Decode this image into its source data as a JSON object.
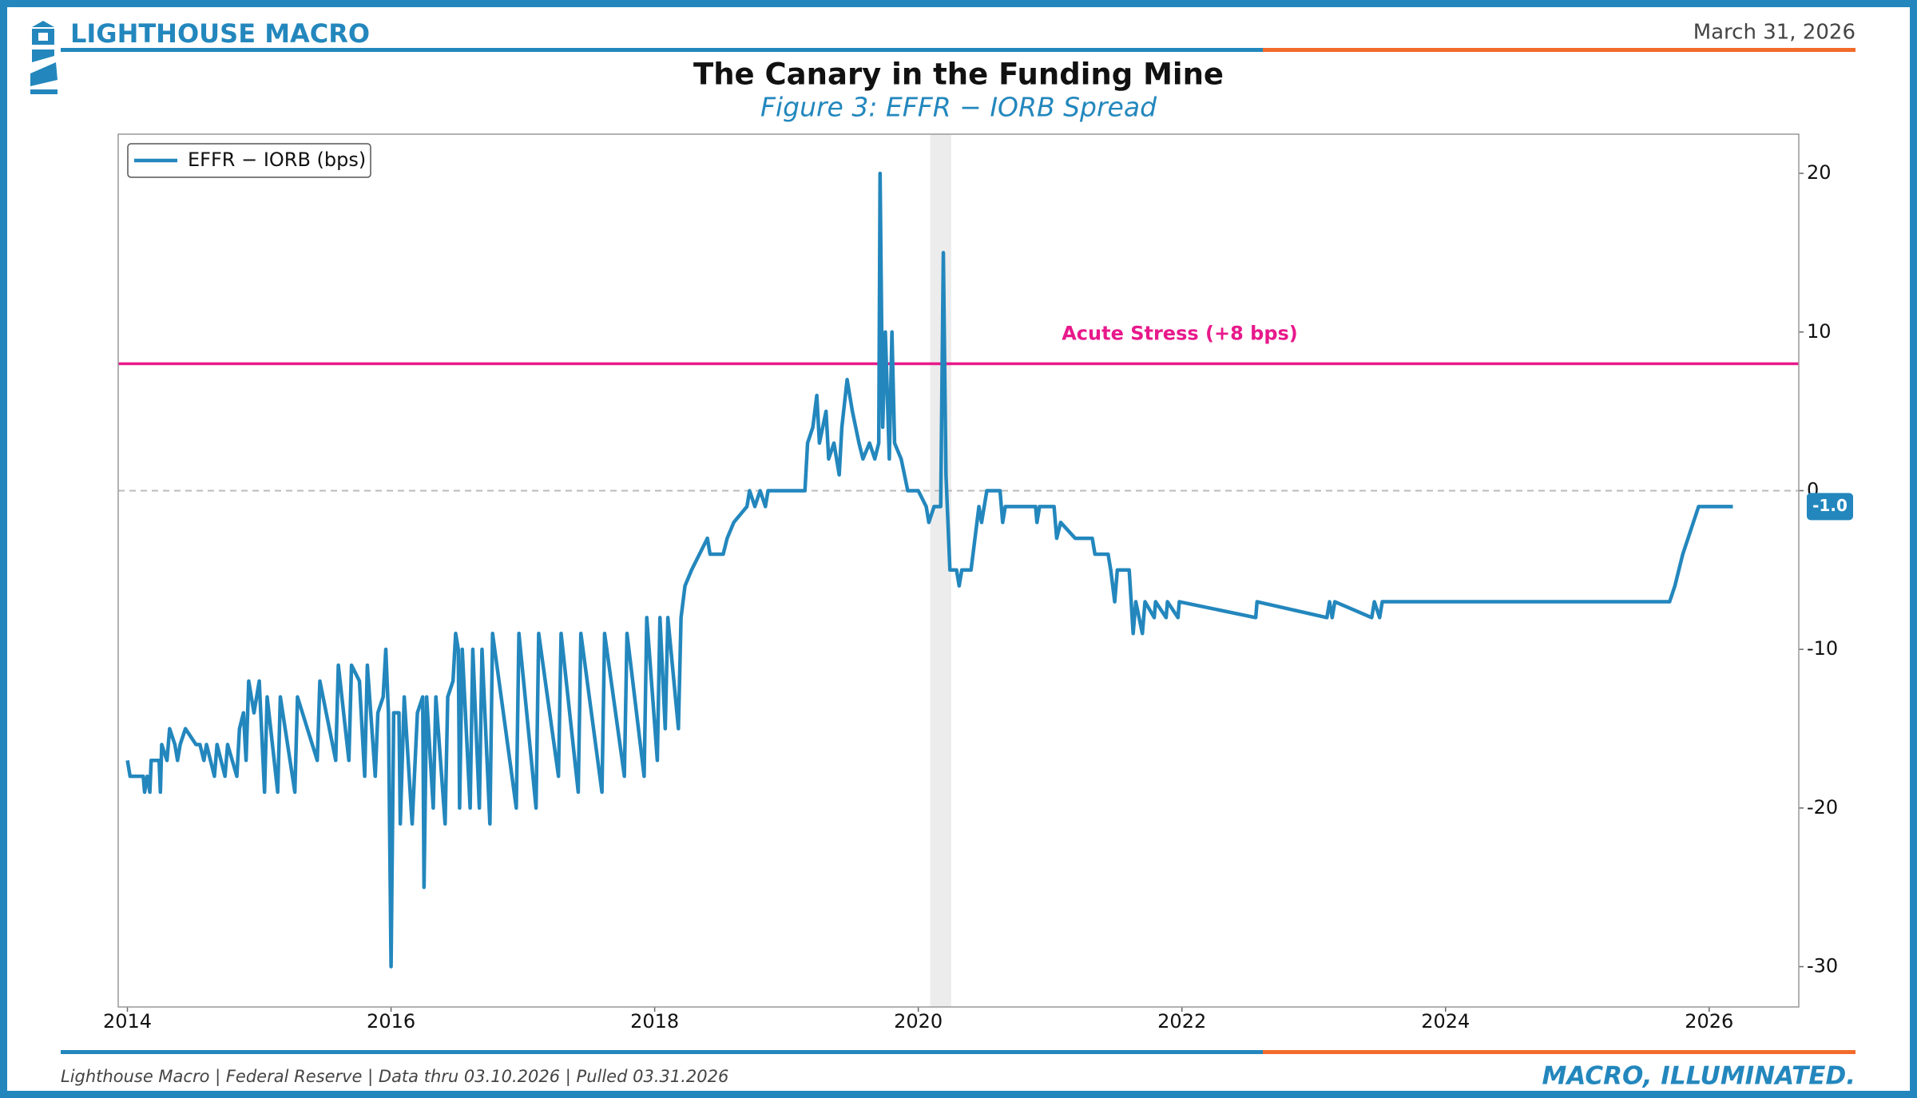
{
  "header": {
    "brand": "LIGHTHOUSE MACRO",
    "date": "March 31, 2026"
  },
  "footer": {
    "source": "Lighthouse Macro | Federal Reserve | Data thru 03.10.2026 | Pulled 03.31.2026",
    "tagline": "MACRO, ILLUMINATED."
  },
  "chart_data": {
    "type": "line",
    "title": "The Canary in the Funding Mine",
    "subtitle": "Figure 3: EFFR − IORB Spread",
    "legend": "upper left",
    "y_axis_side": "right",
    "zero_line": true,
    "xlim": [
      2013.93,
      2026.68
    ],
    "xticks": [
      2014,
      2016,
      2018,
      2020,
      2022,
      2024,
      2026
    ],
    "ylim": [
      -32.54,
      22.47
    ],
    "yticks": [
      -30,
      -20,
      -10,
      0,
      10,
      20
    ],
    "shaded_regions": [
      [
        2020.09,
        2020.25
      ]
    ],
    "reference_lines": [
      {
        "value": 8,
        "label": "Acute Stress (+8 bps)",
        "color": "#e8198b"
      }
    ],
    "end_labels": [
      {
        "value": -1,
        "label": "-1.0"
      }
    ],
    "x": [
      2014.0,
      2014.02,
      2014.12,
      2014.13,
      2014.15,
      2014.17,
      2014.18,
      2014.24,
      2014.25,
      2014.26,
      2014.3,
      2014.32,
      2014.36,
      2014.38,
      2014.4,
      2014.44,
      2014.52,
      2014.55,
      2014.58,
      2014.6,
      2014.66,
      2014.68,
      2014.74,
      2014.76,
      2014.83,
      2014.85,
      2014.88,
      2014.9,
      2014.92,
      2014.96,
      2015.0,
      2015.04,
      2015.06,
      2015.14,
      2015.16,
      2015.27,
      2015.29,
      2015.44,
      2015.46,
      2015.58,
      2015.6,
      2015.68,
      2015.7,
      2015.76,
      2015.8,
      2015.82,
      2015.88,
      2015.9,
      2015.94,
      2015.96,
      2015.98,
      2016.0,
      2016.02,
      2016.06,
      2016.07,
      2016.1,
      2016.16,
      2016.2,
      2016.24,
      2016.25,
      2016.27,
      2016.32,
      2016.34,
      2016.41,
      2016.43,
      2016.47,
      2016.49,
      2016.51,
      2016.52,
      2016.54,
      2016.6,
      2016.62,
      2016.67,
      2016.69,
      2016.75,
      2016.77,
      2016.95,
      2016.97,
      2017.1,
      2017.12,
      2017.27,
      2017.29,
      2017.42,
      2017.44,
      2017.6,
      2017.62,
      2017.77,
      2017.79,
      2017.92,
      2017.94,
      2018.02,
      2018.04,
      2018.08,
      2018.1,
      2018.18,
      2018.2,
      2018.23,
      2018.28,
      2018.4,
      2018.42,
      2018.52,
      2018.55,
      2018.6,
      2018.7,
      2018.72,
      2018.76,
      2018.8,
      2018.84,
      2018.86,
      2019.14,
      2019.16,
      2019.2,
      2019.23,
      2019.25,
      2019.3,
      2019.32,
      2019.36,
      2019.4,
      2019.42,
      2019.46,
      2019.5,
      2019.55,
      2019.58,
      2019.63,
      2019.67,
      2019.7,
      2019.71,
      2019.73,
      2019.75,
      2019.78,
      2019.8,
      2019.82,
      2019.87,
      2019.92,
      2020.0,
      2020.06,
      2020.08,
      2020.12,
      2020.17,
      2020.19,
      2020.21,
      2020.24,
      2020.29,
      2020.31,
      2020.33,
      2020.4,
      2020.43,
      2020.46,
      2020.48,
      2020.52,
      2020.62,
      2020.64,
      2020.66,
      2020.89,
      2020.9,
      2020.92,
      2021.03,
      2021.05,
      2021.08,
      2021.19,
      2021.32,
      2021.34,
      2021.44,
      2021.46,
      2021.49,
      2021.51,
      2021.6,
      2021.63,
      2021.65,
      2021.7,
      2021.72,
      2021.79,
      2021.8,
      2021.88,
      2021.89,
      2021.97,
      2021.98,
      2022.56,
      2022.57,
      2023.1,
      2023.12,
      2023.14,
      2023.16,
      2023.44,
      2023.46,
      2023.5,
      2023.52,
      2025.7,
      2025.74,
      2025.77,
      2025.8,
      2025.84,
      2025.88,
      2025.92,
      2026.18
    ],
    "series": [
      {
        "name": "EFFR − IORB (bps)",
        "color": "#2387bd",
        "values": [
          -17,
          -18,
          -18,
          -19,
          -18,
          -19,
          -17,
          -17,
          -19,
          -16,
          -17,
          -15,
          -16,
          -17,
          -16,
          -15,
          -16,
          -16,
          -17,
          -16,
          -18,
          -16,
          -18,
          -16,
          -18,
          -15,
          -14,
          -17,
          -12,
          -14,
          -12,
          -19,
          -13,
          -19,
          -13,
          -19,
          -13,
          -17,
          -12,
          -17,
          -11,
          -17,
          -11,
          -12,
          -18,
          -11,
          -18,
          -14,
          -13,
          -10,
          -14,
          -30,
          -14,
          -14,
          -21,
          -13,
          -21,
          -14,
          -13,
          -25,
          -13,
          -20,
          -13,
          -21,
          -13,
          -12,
          -9,
          -10,
          -20,
          -10,
          -20,
          -10,
          -20,
          -10,
          -21,
          -9,
          -20,
          -9,
          -20,
          -9,
          -18,
          -9,
          -19,
          -9,
          -19,
          -9,
          -18,
          -9,
          -18,
          -8,
          -17,
          -8,
          -15,
          -8,
          -15,
          -8,
          -6,
          -5,
          -3,
          -4,
          -4,
          -3,
          -2,
          -1,
          0,
          -1,
          0,
          -1,
          0,
          0,
          3,
          4,
          6,
          3,
          5,
          2,
          3,
          1,
          4,
          7,
          5,
          3,
          2,
          3,
          2,
          3,
          20,
          4,
          10,
          2,
          10,
          3,
          2,
          0,
          0,
          -1,
          -2,
          -1,
          -1,
          15,
          1,
          -5,
          -5,
          -6,
          -5,
          -5,
          -3,
          -1,
          -2,
          0,
          0,
          -2,
          -1,
          -1,
          -2,
          -1,
          -1,
          -3,
          -2,
          -3,
          -3,
          -4,
          -4,
          -5,
          -7,
          -5,
          -5,
          -9,
          -7,
          -9,
          -7,
          -8,
          -7,
          -8,
          -7,
          -8,
          -7,
          -8,
          -7,
          -8,
          -7,
          -8,
          -7,
          -8,
          -7,
          -8,
          -7,
          -7,
          -6,
          -5,
          -4,
          -3,
          -2,
          -1,
          -1
        ]
      }
    ]
  }
}
